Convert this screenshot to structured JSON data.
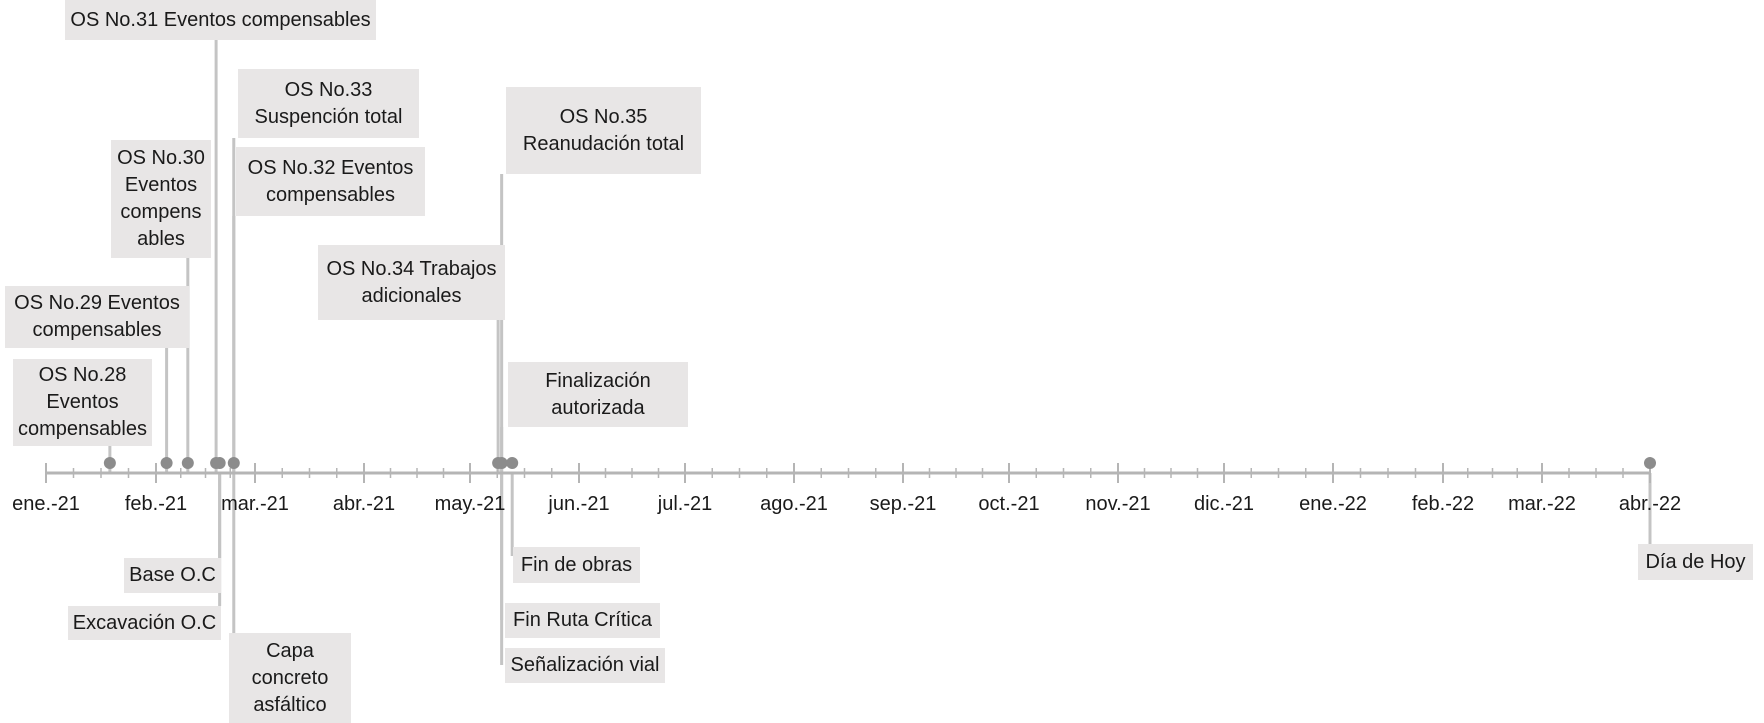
{
  "months": [
    {
      "key": "m0",
      "label": "ene.-21"
    },
    {
      "key": "m1",
      "label": "feb.-21"
    },
    {
      "key": "m2",
      "label": "mar.-21"
    },
    {
      "key": "m3",
      "label": "abr.-21"
    },
    {
      "key": "m4",
      "label": "may.-21"
    },
    {
      "key": "m5",
      "label": "jun.-21"
    },
    {
      "key": "m6",
      "label": "jul.-21"
    },
    {
      "key": "m7",
      "label": "ago.-21"
    },
    {
      "key": "m8",
      "label": "sep.-21"
    },
    {
      "key": "m9",
      "label": "oct.-21"
    },
    {
      "key": "m10",
      "label": "nov.-21"
    },
    {
      "key": "m11",
      "label": "dic.-21"
    },
    {
      "key": "m12",
      "label": "ene.-22"
    },
    {
      "key": "m13",
      "label": "feb.-22"
    },
    {
      "key": "m14",
      "label": "mar.-22"
    },
    {
      "key": "m15",
      "label": "abr.-22"
    }
  ],
  "colors": {
    "axis": "#b5b5b5",
    "marker": "#8c8c8c",
    "connector": "#c4c4c4",
    "box": "#e8e6e6",
    "text": "#1a1a1a"
  },
  "events": [
    {
      "key": "os28",
      "label": "OS No.28\nEventos\ncompensables",
      "date": "2021-01-19"
    },
    {
      "key": "os29",
      "label": "OS No.29 Eventos\ncompensables",
      "date": "2021-02-04"
    },
    {
      "key": "os30",
      "label": "OS No.30\nEventos\ncompens\nables",
      "date": "2021-02-10"
    },
    {
      "key": "os31",
      "label": "OS No.31 Eventos compensables",
      "date": "2021-02-18"
    },
    {
      "key": "os32",
      "label": "OS No.32 Eventos\ncompensables",
      "date": "2021-02-23"
    },
    {
      "key": "os33",
      "label": "OS No.33\nSuspención total",
      "date": "2021-02-23"
    },
    {
      "key": "os34",
      "label": "OS No.34 Trabajos\nadicionales",
      "date": "2021-05-09"
    },
    {
      "key": "os35",
      "label": "OS No.35\nReanudación total",
      "date": "2021-05-10"
    },
    {
      "key": "fin_aut",
      "label": "Finalización\nautorizada",
      "date": "2021-05-10"
    },
    {
      "key": "base_oc",
      "label": "Base O.C",
      "date": "2021-02-19"
    },
    {
      "key": "exc_oc",
      "label": "Excavación O.C",
      "date": "2021-02-19"
    },
    {
      "key": "capa",
      "label": "Capa\nconcreto\nasfáltico",
      "date": "2021-02-23"
    },
    {
      "key": "fin_obras",
      "label": "Fin de obras",
      "date": "2021-05-13"
    },
    {
      "key": "fin_ruta",
      "label": "Fin Ruta Crítica",
      "date": "2021-05-10"
    },
    {
      "key": "senal",
      "label": "Señalización vial",
      "date": "2021-05-10"
    },
    {
      "key": "hoy",
      "label": "Día de Hoy",
      "date": "2022-04-01"
    }
  ]
}
